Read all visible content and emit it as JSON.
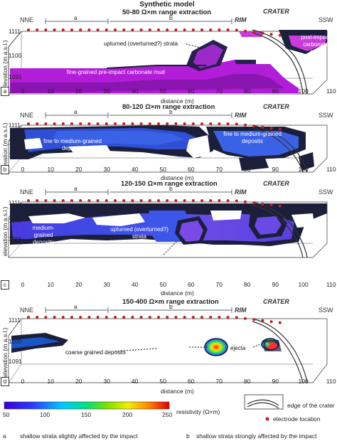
{
  "figure_title": "Synthetic model",
  "units": "(m a.s.l.)",
  "panels": [
    {
      "letter": "a",
      "title": "50-80 Ω×m range extraction",
      "annotations": [
        "upturned (overturned?) strata",
        "post-impact carbonate mud",
        "fine-grained pre-impact carbonate mud"
      ]
    },
    {
      "letter": "b",
      "title": "80-120 Ω×m range extraction",
      "annotations": [
        "fine to medium-grained deposits",
        "fine to medium-grained deposits"
      ]
    },
    {
      "letter": "c",
      "title": "120-150 Ω×m range extraction",
      "annotations": [
        "medium-grained deposits",
        "upturned (overturned?) strata"
      ]
    },
    {
      "letter": "d",
      "title": "150-400 Ω×m range extraction",
      "annotations": [
        "coarse grained deposits",
        "ejecta"
      ]
    }
  ],
  "labels": {
    "nne": "NNE",
    "ssw": "SSW",
    "rim": "RIM",
    "crater": "CRATER",
    "ylabel": "elevation (m a.s.l.)",
    "xlabel": "distance (m)",
    "seg_a": "a",
    "seg_b": "b"
  },
  "y_ticks": [
    "1111",
    "1100",
    "1091"
  ],
  "x_ticks": [
    "0",
    "10",
    "20",
    "30",
    "40",
    "50",
    "60",
    "70",
    "80",
    "90",
    "100",
    "110"
  ],
  "colorbar": {
    "label": "resistivity (Ω×m)",
    "ticks": [
      "50",
      "100",
      "150",
      "200",
      "250"
    ],
    "min": 50,
    "max": 250
  },
  "legend": {
    "crater_edge": "edge of the crater",
    "electrode": "electrode location"
  },
  "footnotes": {
    "a_letter": "a",
    "a_text": "shallow strata slightly affected by the impact",
    "b_letter": "b",
    "b_text": "shallow strata strongly affected by the impact"
  },
  "colors": {
    "purple": "#b21dd8",
    "magenta": "#c83cdc",
    "blue_a": "#2f4fd6",
    "blue_b": "#3a62e6",
    "navy": "#2a2f6e",
    "dark": "#1c1f3a",
    "electrode": "#c02020"
  }
}
